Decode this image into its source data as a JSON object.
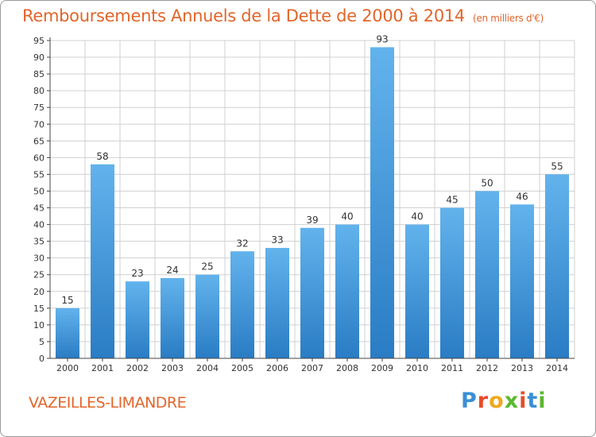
{
  "header": {
    "title": "Remboursements Annuels de la Dette de 2000 à 2014",
    "subtitle": "(en milliers d'€)"
  },
  "footer": {
    "town": "VAZEILLES-LIMANDRE",
    "logo_letters": [
      "P",
      "r",
      "o",
      "x",
      "i",
      "t",
      "i"
    ],
    "logo_colors": [
      "#3a8fd6",
      "#e84b2a",
      "#f0a81e",
      "#5cb82e",
      "#e84b2a",
      "#3a8fd6",
      "#5cb82e"
    ]
  },
  "colors": {
    "bar_light": "#62b3ec",
    "bar_dark": "#2a7cc4",
    "grid": "#d0d0d0",
    "axis": "#444444",
    "accent": "#e2652a"
  },
  "chart_data": {
    "type": "bar",
    "title": "Remboursements Annuels de la Dette de 2000 à 2014",
    "ylabel": "en milliers d'€",
    "xlabel": "",
    "categories": [
      "2000",
      "2001",
      "2002",
      "2003",
      "2004",
      "2005",
      "2006",
      "2007",
      "2008",
      "2009",
      "2010",
      "2011",
      "2012",
      "2013",
      "2014"
    ],
    "values": [
      15,
      58,
      23,
      24,
      25,
      32,
      33,
      39,
      40,
      93,
      40,
      45,
      50,
      46,
      55
    ],
    "ylim": [
      0,
      95
    ],
    "yticks": [
      0,
      5,
      10,
      15,
      20,
      25,
      30,
      35,
      40,
      45,
      50,
      55,
      60,
      65,
      70,
      75,
      80,
      85,
      90,
      95
    ],
    "grid": true
  }
}
